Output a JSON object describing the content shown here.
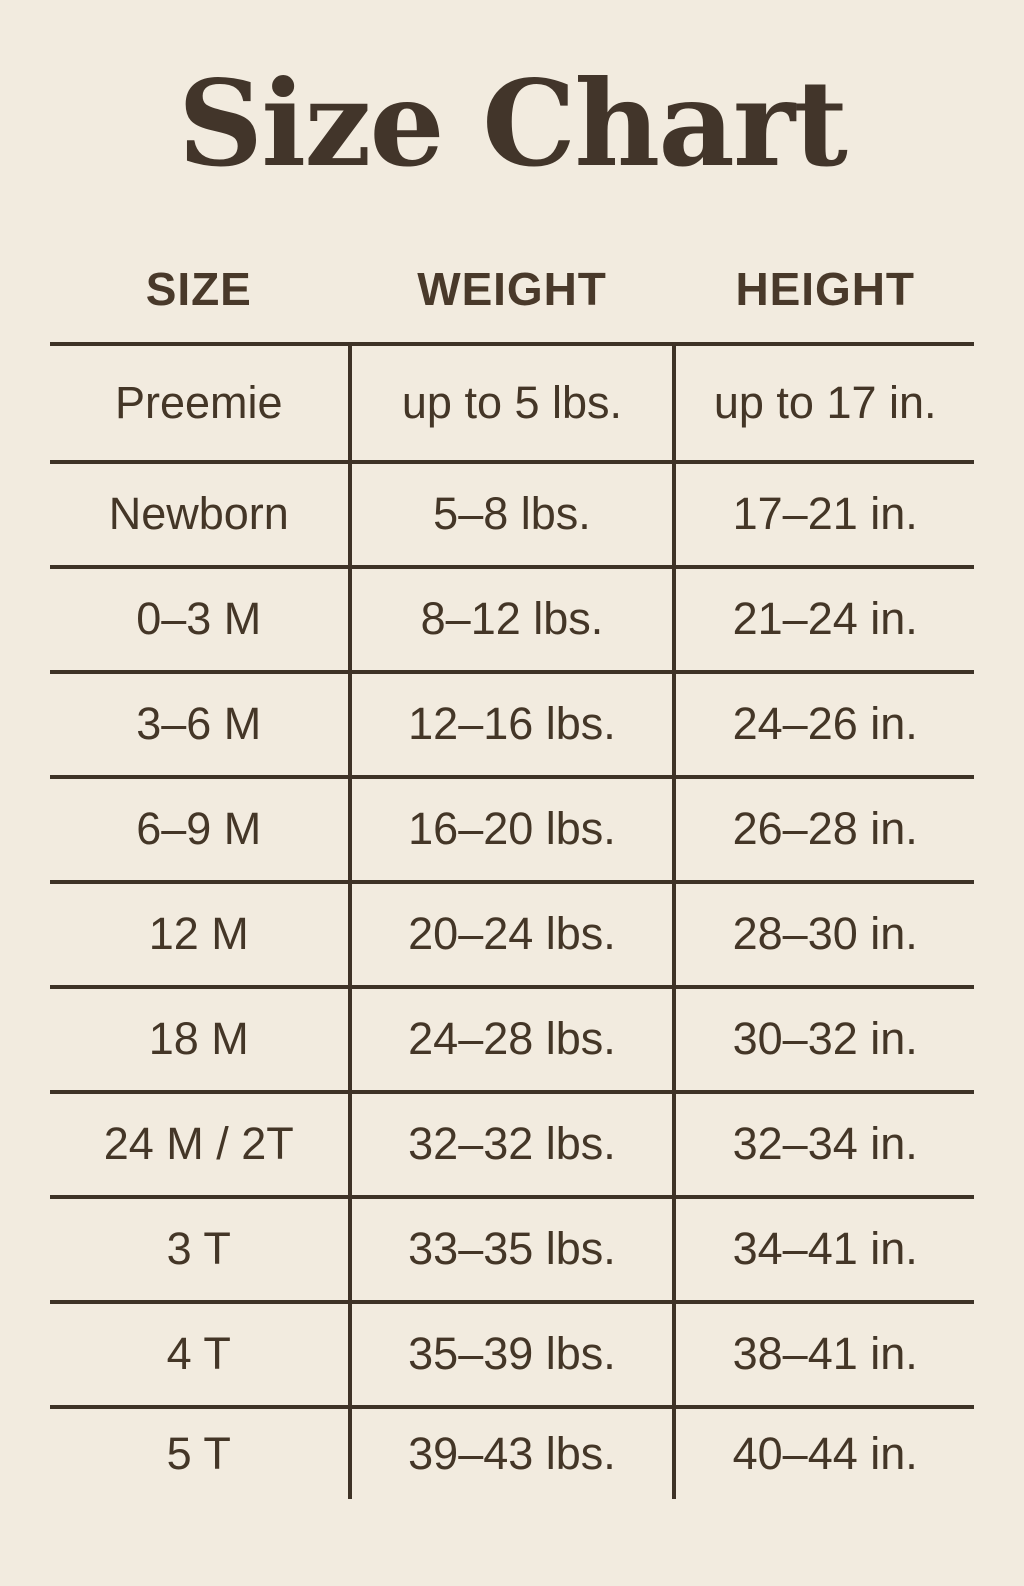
{
  "title": "Size Chart",
  "colors": {
    "background": "#f2ebdf",
    "text": "#443627",
    "title_text": "#42352a",
    "line": "#3e3226"
  },
  "table": {
    "headers": [
      "SIZE",
      "WEIGHT",
      "HEIGHT"
    ],
    "rows": [
      [
        "Preemie",
        "up to 5 lbs.",
        "up to 17 in."
      ],
      [
        "Newborn",
        "5–8 lbs.",
        "17–21 in."
      ],
      [
        "0–3 M",
        "8–12 lbs.",
        "21–24 in."
      ],
      [
        "3–6 M",
        "12–16 lbs.",
        "24–26 in."
      ],
      [
        "6–9 M",
        "16–20 lbs.",
        "26–28 in."
      ],
      [
        "12 M",
        "20–24 lbs.",
        "28–30 in."
      ],
      [
        "18 M",
        "24–28 lbs.",
        "30–32 in."
      ],
      [
        "24 M / 2T",
        "32–32 lbs.",
        "32–34 in."
      ],
      [
        "3 T",
        "33–35 lbs.",
        "34–41 in."
      ],
      [
        "4 T",
        "35–39 lbs.",
        "38–41 in."
      ],
      [
        "5 T",
        "39–43 lbs.",
        "40–44 in."
      ]
    ]
  },
  "chart_data": {
    "type": "table",
    "title": "Size Chart",
    "columns": [
      "SIZE",
      "WEIGHT",
      "HEIGHT"
    ],
    "rows": [
      {
        "size": "Preemie",
        "weight": "up to 5 lbs.",
        "height": "up to 17 in."
      },
      {
        "size": "Newborn",
        "weight": "5–8 lbs.",
        "height": "17–21 in."
      },
      {
        "size": "0–3 M",
        "weight": "8–12 lbs.",
        "height": "21–24 in."
      },
      {
        "size": "3–6 M",
        "weight": "12–16 lbs.",
        "height": "24–26 in."
      },
      {
        "size": "6–9 M",
        "weight": "16–20 lbs.",
        "height": "26–28 in."
      },
      {
        "size": "12 M",
        "weight": "20–24 lbs.",
        "height": "28–30 in."
      },
      {
        "size": "18 M",
        "weight": "24–28 lbs.",
        "height": "30–32 in."
      },
      {
        "size": "24 M / 2T",
        "weight": "32–32 lbs.",
        "height": "32–34 in."
      },
      {
        "size": "3 T",
        "weight": "33–35 lbs.",
        "height": "34–41 in."
      },
      {
        "size": "4 T",
        "weight": "35–39 lbs.",
        "height": "38–41 in."
      },
      {
        "size": "5 T",
        "weight": "39–43 lbs.",
        "height": "40–44 in."
      }
    ]
  }
}
